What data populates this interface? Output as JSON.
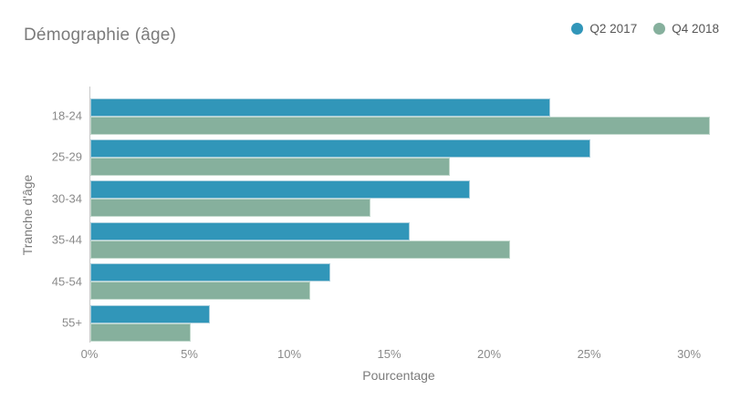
{
  "title": "Démographie (âge)",
  "legend": {
    "items": [
      {
        "label": "Q2 2017",
        "color": "#3196b9"
      },
      {
        "label": "Q4 2018",
        "color": "#86b09d"
      }
    ]
  },
  "chart_data": {
    "type": "bar",
    "orientation": "horizontal",
    "title": "Démographie (âge)",
    "categories": [
      "18-24",
      "25-29",
      "30-34",
      "35-44",
      "45-54",
      "55+"
    ],
    "series": [
      {
        "name": "Q2 2017",
        "color": "#3196b9",
        "border_color": "#aacfdd",
        "values": [
          23,
          25,
          19,
          16,
          12,
          6
        ]
      },
      {
        "name": "Q4 2018",
        "color": "#86b09d",
        "border_color": "#c2d9cd",
        "values": [
          31,
          18,
          14,
          21,
          11,
          5
        ]
      }
    ],
    "xlabel": "Pourcentage",
    "ylabel": "Tranche d'âge",
    "xlim": [
      0,
      31
    ],
    "xticks": [
      "0%",
      "5%",
      "10%",
      "15%",
      "20%",
      "25%",
      "30%"
    ],
    "xtick_values": [
      0,
      5,
      10,
      15,
      20,
      25,
      30
    ],
    "legend_position": "top-right",
    "grid": false,
    "background": "#ffffff"
  }
}
